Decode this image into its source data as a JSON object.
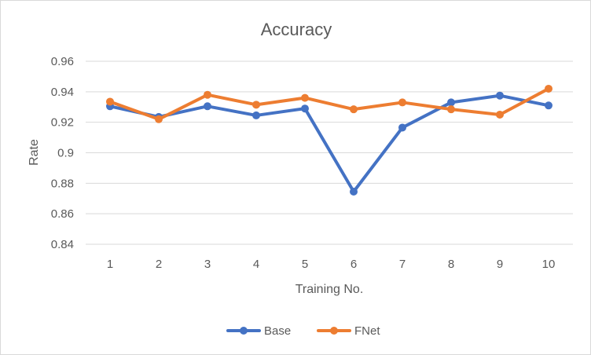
{
  "chart_data": {
    "type": "line",
    "title": "Accuracy",
    "xlabel": "Training No.",
    "ylabel": "Rate",
    "categories": [
      "1",
      "2",
      "3",
      "4",
      "5",
      "6",
      "7",
      "8",
      "9",
      "10"
    ],
    "ylim": [
      0.84,
      0.96
    ],
    "yticks": [
      "0.84",
      "0.86",
      "0.88",
      "0.9",
      "0.92",
      "0.94",
      "0.96"
    ],
    "grid": true,
    "legend": "bottom",
    "series": [
      {
        "name": "Base",
        "color": "#4472c4",
        "values": [
          0.9305,
          0.9235,
          0.9305,
          0.9245,
          0.929,
          0.8745,
          0.9165,
          0.933,
          0.9375,
          0.931
        ]
      },
      {
        "name": "FNet",
        "color": "#ed7d31",
        "values": [
          0.9335,
          0.922,
          0.938,
          0.9315,
          0.936,
          0.9285,
          0.933,
          0.9285,
          0.925,
          0.942
        ]
      }
    ]
  }
}
